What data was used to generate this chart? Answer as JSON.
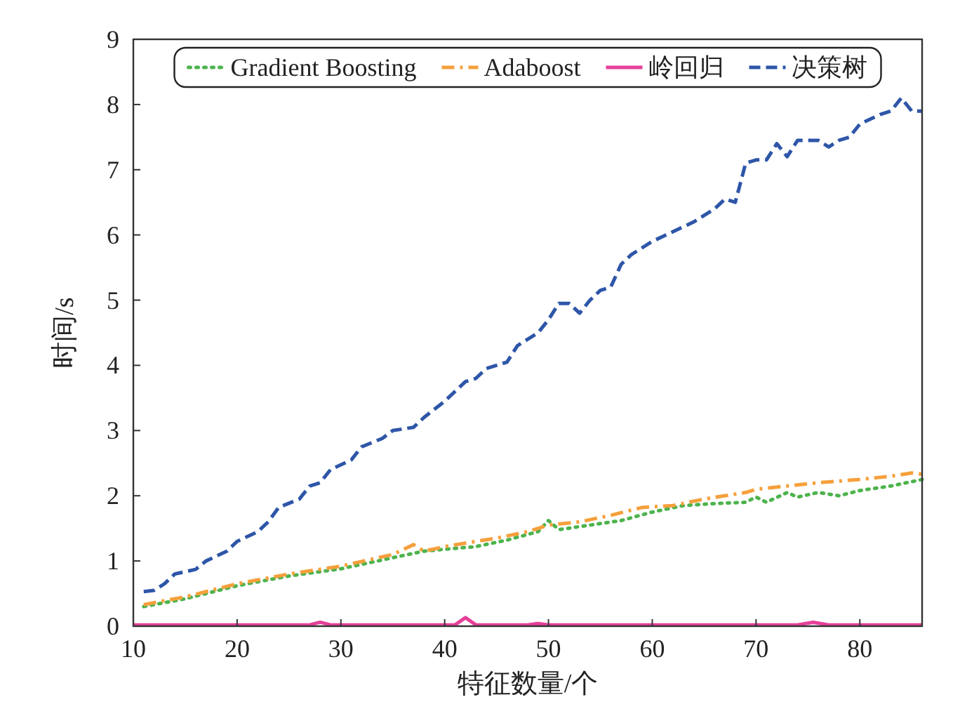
{
  "chart_data": {
    "type": "line",
    "xlabel": "特征数量/个",
    "ylabel": "时间/s",
    "xlim": [
      10,
      86
    ],
    "xticks": [
      10,
      20,
      30,
      40,
      50,
      60,
      70,
      80
    ],
    "ylim": [
      0,
      9
    ],
    "yticks": [
      0,
      1,
      2,
      3,
      4,
      5,
      6,
      7,
      8,
      9
    ],
    "grid": false,
    "legend": "top",
    "marker": "none",
    "series": [
      {
        "name": "Gradient Boosting",
        "color": "#4cb34c",
        "line_style": "dotted",
        "x": [
          11,
          15,
          20,
          25,
          30,
          35,
          38,
          40,
          43,
          46,
          49,
          50,
          51,
          54,
          57,
          60,
          63,
          66,
          69,
          70,
          71,
          73,
          74,
          76,
          78,
          80,
          83,
          86
        ],
        "values": [
          0.3,
          0.42,
          0.62,
          0.77,
          0.88,
          1.05,
          1.15,
          1.18,
          1.22,
          1.32,
          1.45,
          1.62,
          1.48,
          1.55,
          1.62,
          1.75,
          1.85,
          1.88,
          1.9,
          1.98,
          1.9,
          2.05,
          1.98,
          2.05,
          2.0,
          2.08,
          2.15,
          2.25
        ]
      },
      {
        "name": "Adaboost",
        "color": "#f5a03c",
        "line_style": "dashdot",
        "x": [
          11,
          15,
          20,
          25,
          30,
          35,
          37,
          38,
          40,
          43,
          45,
          48,
          50,
          53,
          56,
          59,
          62,
          65,
          69,
          70,
          73,
          76,
          80,
          83,
          85,
          86
        ],
        "values": [
          0.33,
          0.45,
          0.65,
          0.8,
          0.92,
          1.1,
          1.25,
          1.15,
          1.22,
          1.3,
          1.35,
          1.45,
          1.55,
          1.6,
          1.7,
          1.82,
          1.85,
          1.95,
          2.05,
          2.1,
          2.15,
          2.2,
          2.25,
          2.3,
          2.35,
          2.33
        ]
      },
      {
        "name": "岭回归",
        "color": "#e6409a",
        "line_style": "solid",
        "x": [
          10,
          18,
          27,
          28,
          29,
          41,
          42,
          43,
          48,
          49,
          50,
          74,
          75.5,
          77,
          86
        ],
        "values": [
          0.02,
          0.02,
          0.02,
          0.06,
          0.02,
          0.02,
          0.13,
          0.02,
          0.02,
          0.04,
          0.02,
          0.02,
          0.06,
          0.02,
          0.02
        ]
      },
      {
        "name": "决策树",
        "color": "#2e56a8",
        "line_style": "dashed",
        "x": [
          11,
          12,
          13,
          14,
          16,
          17,
          19,
          20,
          22,
          23,
          24,
          26,
          27,
          28,
          29,
          31,
          32,
          34,
          35,
          37,
          38,
          40,
          42,
          43,
          44,
          46,
          47,
          49,
          50,
          51,
          52,
          53,
          54,
          55,
          56,
          57,
          58,
          60,
          62,
          64,
          66,
          67,
          68,
          69,
          70,
          71,
          72,
          73,
          74,
          76,
          77,
          78,
          79,
          80,
          82,
          83,
          84,
          85,
          86
        ],
        "values": [
          0.53,
          0.55,
          0.65,
          0.8,
          0.87,
          1.0,
          1.15,
          1.3,
          1.45,
          1.6,
          1.82,
          1.95,
          2.15,
          2.2,
          2.4,
          2.55,
          2.75,
          2.88,
          3.0,
          3.05,
          3.2,
          3.45,
          3.75,
          3.8,
          3.95,
          4.05,
          4.3,
          4.5,
          4.7,
          4.95,
          4.95,
          4.8,
          5.0,
          5.15,
          5.2,
          5.55,
          5.7,
          5.9,
          6.05,
          6.2,
          6.4,
          6.55,
          6.5,
          7.1,
          7.15,
          7.15,
          7.4,
          7.2,
          7.45,
          7.45,
          7.35,
          7.45,
          7.5,
          7.7,
          7.85,
          7.9,
          8.1,
          7.9,
          7.9
        ]
      }
    ]
  }
}
